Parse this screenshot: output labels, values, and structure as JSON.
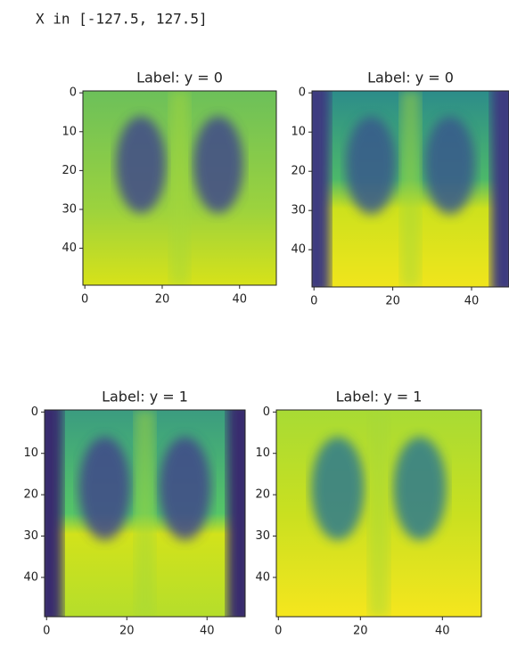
{
  "header": "X in [-127.5, 127.5]",
  "chart_data": [
    {
      "type": "image",
      "title": "Label: y = 0",
      "xlim": [
        -0.5,
        49.5
      ],
      "ylim": [
        49.5,
        -0.5
      ],
      "xticks": [
        0,
        20,
        40
      ],
      "yticks": [
        0,
        10,
        20,
        30,
        40
      ]
    },
    {
      "type": "image",
      "title": "Label: y = 0",
      "xlim": [
        -0.5,
        49.5
      ],
      "ylim": [
        49.5,
        -0.5
      ],
      "xticks": [
        0,
        20,
        40
      ],
      "yticks": [
        0,
        10,
        20,
        30,
        40
      ]
    },
    {
      "type": "image",
      "title": "Label: y = 1",
      "xlim": [
        -0.5,
        49.5
      ],
      "ylim": [
        49.5,
        -0.5
      ],
      "xticks": [
        0,
        20,
        40
      ],
      "yticks": [
        0,
        10,
        20,
        30,
        40
      ]
    },
    {
      "type": "image",
      "title": "Label: y = 1",
      "xlim": [
        -0.5,
        49.5
      ],
      "ylim": [
        49.5,
        -0.5
      ],
      "xticks": [
        0,
        20,
        40
      ],
      "yticks": [
        0,
        10,
        20,
        30,
        40
      ]
    }
  ]
}
